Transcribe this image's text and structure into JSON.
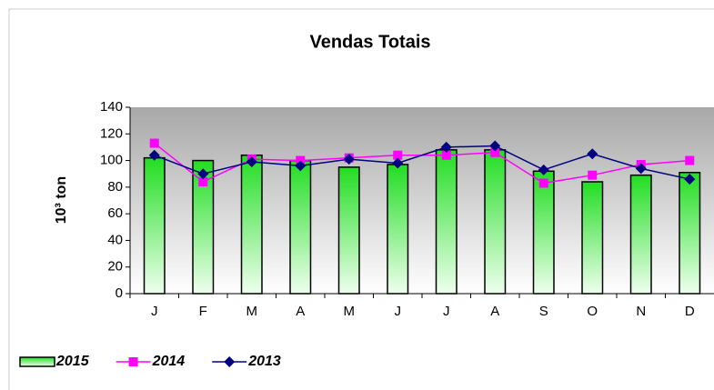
{
  "chart_data": {
    "type": "bar",
    "title": "Vendas Totais",
    "y_label": "10³ ton",
    "categories": [
      "J",
      "F",
      "M",
      "A",
      "M",
      "J",
      "J",
      "A",
      "S",
      "O",
      "N",
      "D"
    ],
    "series": [
      {
        "name": "2015",
        "type": "bar",
        "color": "#33ee33",
        "values": [
          102,
          100,
          104,
          100,
          95,
          97,
          108,
          108,
          92,
          84,
          89,
          91
        ]
      },
      {
        "name": "2014",
        "type": "line",
        "marker": "square",
        "color": "#ff00ff",
        "values": [
          113,
          84,
          101,
          100,
          102,
          104,
          104,
          106,
          83,
          89,
          97,
          100
        ]
      },
      {
        "name": "2013",
        "type": "line",
        "marker": "diamond",
        "color": "#000080",
        "values": [
          104,
          90,
          99,
          96,
          101,
          98,
          110,
          111,
          93,
          105,
          94,
          86
        ]
      }
    ],
    "ylim": [
      0,
      140
    ],
    "yticks": [
      0,
      20,
      40,
      60,
      80,
      100,
      120,
      140
    ],
    "legend": "bottom-left"
  }
}
